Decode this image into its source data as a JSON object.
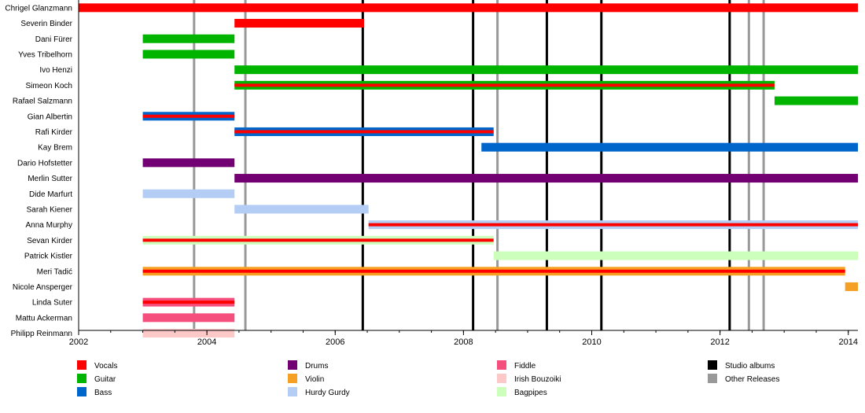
{
  "chart_data": {
    "type": "timeline",
    "x_axis": {
      "min": 2002,
      "max": 2014.15,
      "major_ticks": [
        "2002",
        "2004",
        "2006",
        "2008",
        "2010",
        "2012",
        "2014"
      ],
      "minor_step": 0.5
    },
    "members": [
      {
        "name": "Chrigel Glanzmann",
        "periods": [
          {
            "start": 2002,
            "end": 2014.15,
            "roles": [
              "vocals"
            ]
          }
        ]
      },
      {
        "name": "Severin Binder",
        "periods": [
          {
            "start": 2004.43,
            "end": 2006.45,
            "roles": [
              "vocals"
            ]
          }
        ]
      },
      {
        "name": "Dani Fürer",
        "periods": [
          {
            "start": 2003.0,
            "end": 2004.43,
            "roles": [
              "guitar"
            ]
          }
        ]
      },
      {
        "name": "Yves Tribelhorn",
        "periods": [
          {
            "start": 2003.0,
            "end": 2004.43,
            "roles": [
              "guitar"
            ]
          }
        ]
      },
      {
        "name": "Ivo Henzi",
        "periods": [
          {
            "start": 2004.43,
            "end": 2014.15,
            "roles": [
              "guitar"
            ]
          }
        ]
      },
      {
        "name": "Simeon Koch",
        "periods": [
          {
            "start": 2004.43,
            "end": 2012.85,
            "roles": [
              "guitar",
              "vocals"
            ]
          }
        ]
      },
      {
        "name": "Rafael Salzmann",
        "periods": [
          {
            "start": 2012.85,
            "end": 2014.15,
            "roles": [
              "guitar"
            ]
          }
        ]
      },
      {
        "name": "Gian Albertin",
        "periods": [
          {
            "start": 2003.0,
            "end": 2004.43,
            "roles": [
              "bass",
              "vocals"
            ]
          }
        ]
      },
      {
        "name": "Rafi Kirder",
        "periods": [
          {
            "start": 2004.43,
            "end": 2008.47,
            "roles": [
              "bass",
              "vocals"
            ]
          }
        ]
      },
      {
        "name": "Kay Brem",
        "periods": [
          {
            "start": 2008.28,
            "end": 2014.15,
            "roles": [
              "bass"
            ]
          }
        ]
      },
      {
        "name": "Dario Hofstetter",
        "periods": [
          {
            "start": 2003.0,
            "end": 2004.43,
            "roles": [
              "drums"
            ]
          }
        ]
      },
      {
        "name": "Merlin Sutter",
        "periods": [
          {
            "start": 2004.43,
            "end": 2014.15,
            "roles": [
              "drums"
            ]
          }
        ]
      },
      {
        "name": "Dide Marfurt",
        "periods": [
          {
            "start": 2003.0,
            "end": 2004.43,
            "roles": [
              "hurdy_gurdy"
            ]
          }
        ]
      },
      {
        "name": "Sarah Kiener",
        "periods": [
          {
            "start": 2004.43,
            "end": 2006.52,
            "roles": [
              "hurdy_gurdy"
            ]
          }
        ]
      },
      {
        "name": "Anna Murphy",
        "periods": [
          {
            "start": 2006.52,
            "end": 2014.15,
            "roles": [
              "hurdy_gurdy",
              "vocals"
            ]
          }
        ]
      },
      {
        "name": "Sevan Kirder",
        "periods": [
          {
            "start": 2003.0,
            "end": 2008.47,
            "roles": [
              "bagpipes",
              "vocals"
            ]
          }
        ]
      },
      {
        "name": "Patrick Kistler",
        "periods": [
          {
            "start": 2008.47,
            "end": 2014.15,
            "roles": [
              "bagpipes"
            ]
          }
        ]
      },
      {
        "name": "Meri Tadić",
        "periods": [
          {
            "start": 2003.0,
            "end": 2013.95,
            "roles": [
              "violin",
              "vocals"
            ]
          }
        ]
      },
      {
        "name": "Nicole Ansperger",
        "periods": [
          {
            "start": 2013.95,
            "end": 2014.15,
            "roles": [
              "violin"
            ]
          }
        ]
      },
      {
        "name": "Linda Suter",
        "periods": [
          {
            "start": 2003.0,
            "end": 2004.43,
            "roles": [
              "fiddle",
              "vocals"
            ]
          }
        ]
      },
      {
        "name": "Mattu Ackerman",
        "periods": [
          {
            "start": 2003.0,
            "end": 2004.43,
            "roles": [
              "fiddle"
            ]
          }
        ]
      },
      {
        "name": "Philipp Reinmann",
        "periods": [
          {
            "start": 2003.0,
            "end": 2004.43,
            "roles": [
              "irish_bouzouki"
            ]
          }
        ]
      }
    ],
    "studio_albums": [
      2006.43,
      2008.15,
      2009.3,
      2010.15,
      2012.15
    ],
    "other_releases": [
      2003.8,
      2004.6,
      2008.53,
      2012.45,
      2012.68
    ],
    "legend": {
      "placement": "bottom",
      "items": [
        {
          "key": "vocals",
          "label": "Vocals",
          "color": "#ff0000"
        },
        {
          "key": "guitar",
          "label": "Guitar",
          "color": "#00b400"
        },
        {
          "key": "bass",
          "label": "Bass",
          "color": "#0066cc"
        },
        {
          "key": "drums",
          "label": "Drums",
          "color": "#720072"
        },
        {
          "key": "violin",
          "label": "Violin",
          "color": "#f5a023"
        },
        {
          "key": "hurdy_gurdy",
          "label": "Hurdy Gurdy",
          "color": "#b4cdf5"
        },
        {
          "key": "fiddle",
          "label": "Fiddle",
          "color": "#f5507d"
        },
        {
          "key": "irish_bouzouki",
          "label": "Irish Bouzoiki",
          "color": "#fcc8c8"
        },
        {
          "key": "bagpipes",
          "label": "Bagpipes",
          "color": "#ccffbb"
        },
        {
          "key": "studio_albums",
          "label": "Studio albums",
          "color": "#000000"
        },
        {
          "key": "other_releases",
          "label": "Other Releases",
          "color": "#999999"
        }
      ]
    }
  }
}
